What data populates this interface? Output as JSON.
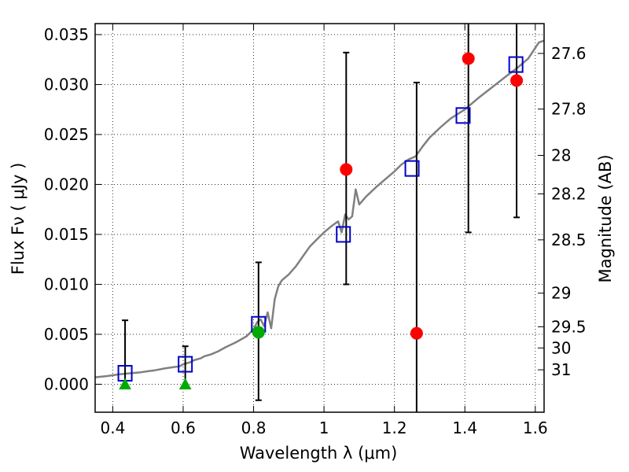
{
  "chart_data": {
    "type": "scatter",
    "xlabel": "Wavelength  λ (μm)",
    "ylabel": "Flux  Fν  ( μJy )",
    "y2label": "Magnitude (AB)",
    "xlim": [
      0.35,
      1.625
    ],
    "ylim": [
      -0.0028,
      0.0361
    ],
    "grid": true,
    "x_ticks": [
      0.4,
      0.6,
      0.8,
      1.0,
      1.2,
      1.4,
      1.6
    ],
    "x_tick_labels": [
      "0.4",
      "0.6",
      "0.8",
      "1",
      "1.2",
      "1.4",
      "1.6"
    ],
    "y_ticks": [
      0.0,
      0.005,
      0.01,
      0.015,
      0.02,
      0.025,
      0.03,
      0.035
    ],
    "y_tick_labels": [
      "0.000",
      "0.005",
      "0.010",
      "0.015",
      "0.020",
      "0.025",
      "0.030",
      "0.035"
    ],
    "mag_ticks": [
      {
        "label": "27.6",
        "value": 27.6
      },
      {
        "label": "27.8",
        "value": 27.8
      },
      {
        "label": "28",
        "value": 28.0
      },
      {
        "label": "28.2",
        "value": 28.2
      },
      {
        "label": "28.5",
        "value": 28.5
      },
      {
        "label": "29",
        "value": 29.0
      },
      {
        "label": "29.5",
        "value": 29.5
      },
      {
        "label": "30",
        "value": 30.0
      },
      {
        "label": "31",
        "value": 31.0
      }
    ],
    "colors": {
      "model": "#808080",
      "model_photometry": "#0000cc",
      "observed": "#ff0000",
      "observed_green": "#00aa00",
      "upper_limit": "#00aa00",
      "errorbar": "#000000",
      "grid": "#000000"
    },
    "series": [
      {
        "name": "model SED",
        "kind": "line",
        "x": [
          0.35,
          0.38,
          0.4,
          0.42,
          0.45,
          0.48,
          0.5,
          0.52,
          0.55,
          0.57,
          0.59,
          0.6,
          0.62,
          0.63,
          0.65,
          0.66,
          0.68,
          0.7,
          0.72,
          0.75,
          0.78,
          0.8,
          0.81,
          0.82,
          0.83,
          0.84,
          0.85,
          0.86,
          0.87,
          0.88,
          0.9,
          0.92,
          0.94,
          0.96,
          0.98,
          1.0,
          1.02,
          1.04,
          1.05,
          1.06,
          1.07,
          1.08,
          1.09,
          1.1,
          1.12,
          1.15,
          1.18,
          1.2,
          1.22,
          1.24,
          1.26,
          1.28,
          1.3,
          1.33,
          1.36,
          1.4,
          1.44,
          1.48,
          1.52,
          1.55,
          1.58,
          1.61,
          1.625
        ],
        "y": [
          0.0007,
          0.0008,
          0.0009,
          0.001,
          0.0011,
          0.0012,
          0.0013,
          0.0014,
          0.0016,
          0.0017,
          0.0018,
          0.002,
          0.0022,
          0.0024,
          0.0026,
          0.0028,
          0.003,
          0.0033,
          0.0037,
          0.0042,
          0.0048,
          0.0055,
          0.0062,
          0.0065,
          0.0058,
          0.0072,
          0.0056,
          0.0085,
          0.0098,
          0.0104,
          0.011,
          0.0118,
          0.0128,
          0.0138,
          0.0145,
          0.0152,
          0.0158,
          0.0163,
          0.0152,
          0.017,
          0.0165,
          0.0168,
          0.0195,
          0.018,
          0.0188,
          0.0198,
          0.0207,
          0.0213,
          0.022,
          0.0225,
          0.0228,
          0.0238,
          0.0247,
          0.0257,
          0.0266,
          0.0275,
          0.0287,
          0.0298,
          0.0309,
          0.0317,
          0.0326,
          0.0342,
          0.0344
        ]
      },
      {
        "name": "model photometry",
        "kind": "square",
        "x": [
          0.435,
          0.606,
          0.814,
          1.055,
          1.25,
          1.395,
          1.545
        ],
        "y": [
          0.0011,
          0.002,
          0.006,
          0.015,
          0.0216,
          0.0269,
          0.032
        ]
      },
      {
        "name": "observed flux",
        "kind": "circle",
        "x": [
          0.814,
          1.063,
          1.263,
          1.41,
          1.547
        ],
        "y": [
          0.0052,
          0.0215,
          0.0051,
          0.0326,
          0.0304
        ],
        "colors": [
          "green",
          "red",
          "red",
          "red",
          "red"
        ],
        "err_low": [
          0.0068,
          0.0115,
          0.01,
          0.0174,
          0.0137
        ],
        "err_high": [
          0.007,
          0.0117,
          0.0251,
          0.006,
          0.009
        ]
      },
      {
        "name": "upper limits",
        "kind": "triangle",
        "x": [
          0.435,
          0.606
        ],
        "y": [
          0.0,
          0.0
        ],
        "err_low": [
          0.0,
          0.0
        ],
        "err_high": [
          0.0064,
          0.0038
        ]
      }
    ]
  }
}
